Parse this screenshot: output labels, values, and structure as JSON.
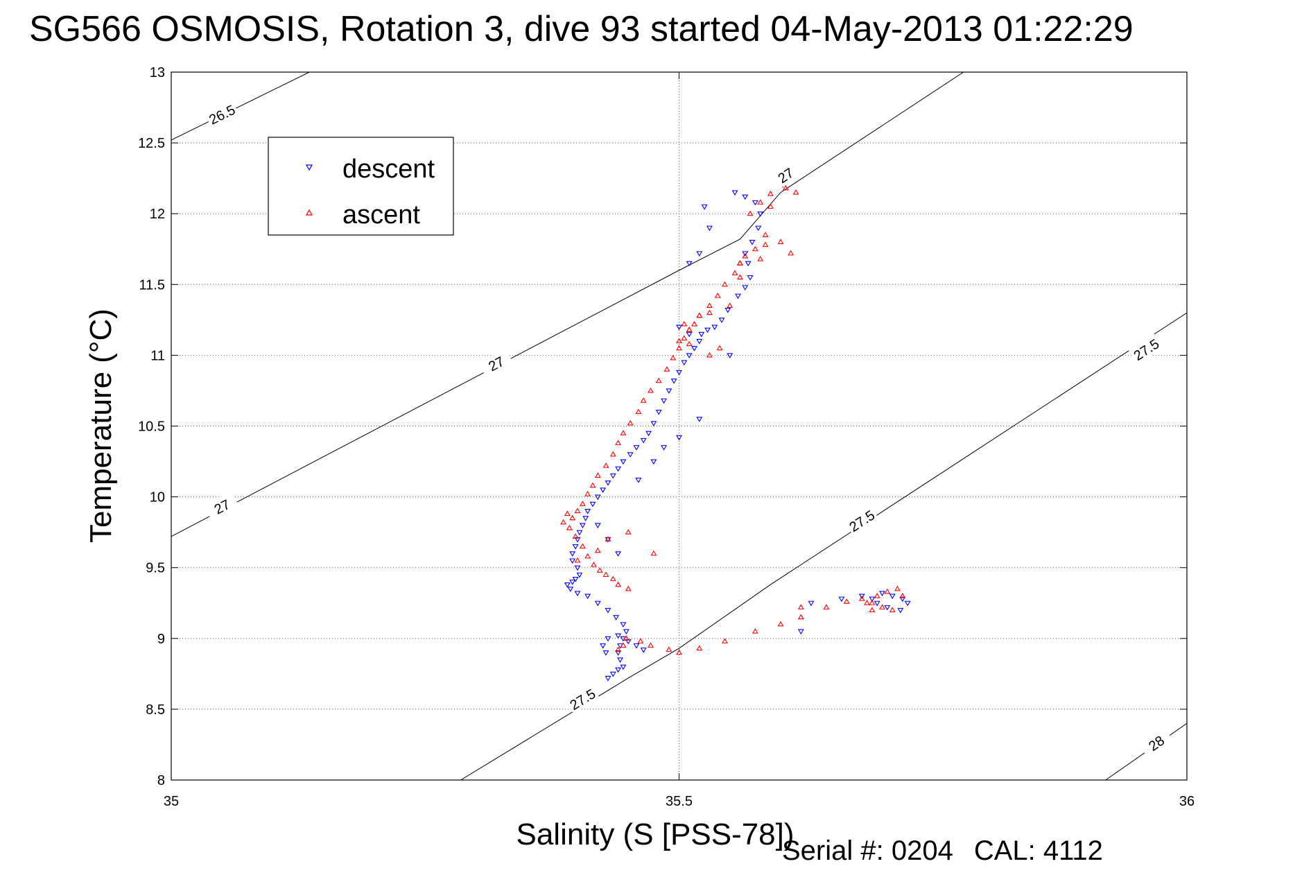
{
  "title": "SG566 OSMOSIS, Rotation 3, dive 93 started 04-May-2013 01:22:29",
  "footer": {
    "serial": "Serial #: 0204",
    "cal": "CAL: 4112"
  },
  "colors": {
    "descent": "#0000ff",
    "ascent": "#ff0000",
    "grid": "#555555",
    "axis": "#000000"
  },
  "chart_data": {
    "type": "scatter",
    "xlabel": "Salinity (S [PSS-78])",
    "ylabel": "Temperature (°C)",
    "xlim": [
      35,
      36
    ],
    "ylim": [
      8,
      13
    ],
    "xticks": [
      35,
      35.5,
      36
    ],
    "xtick_labels": [
      "35",
      "35.5",
      "36"
    ],
    "yticks": [
      8,
      8.5,
      9,
      9.5,
      10,
      10.5,
      11,
      11.5,
      12,
      12.5,
      13
    ],
    "ytick_labels": [
      "8",
      "8.5",
      "9",
      "9.5",
      "10",
      "10.5",
      "11",
      "11.5",
      "12",
      "12.5",
      "13"
    ],
    "grid": true,
    "legend": {
      "position": "upper-left",
      "entries": [
        "descent",
        "ascent"
      ]
    },
    "density_contours": [
      {
        "label": "26.5",
        "points": [
          [
            35.0,
            12.52
          ],
          [
            35.136,
            13.0
          ]
        ],
        "label_positions": [
          [
            35.05,
            12.7
          ]
        ]
      },
      {
        "label": "27",
        "points": [
          [
            35.0,
            9.72
          ],
          [
            35.5,
            11.6
          ],
          [
            35.56,
            11.82
          ],
          [
            35.6,
            12.15
          ],
          [
            35.78,
            13.0
          ]
        ],
        "label_positions": [
          [
            35.05,
            9.93
          ],
          [
            35.32,
            10.94
          ],
          [
            35.605,
            12.27
          ]
        ]
      },
      {
        "label": "27.5",
        "points": [
          [
            35.285,
            8.0
          ],
          [
            35.45,
            8.72
          ],
          [
            35.5,
            8.93
          ],
          [
            35.59,
            9.38
          ],
          [
            36.0,
            11.3
          ]
        ],
        "label_positions": [
          [
            35.405,
            8.57
          ],
          [
            35.68,
            9.83
          ],
          [
            35.96,
            11.04
          ]
        ]
      },
      {
        "label": "28",
        "points": [
          [
            35.92,
            8.0
          ],
          [
            36.0,
            8.4
          ]
        ],
        "label_positions": [
          [
            35.97,
            8.26
          ]
        ]
      }
    ],
    "series": [
      {
        "name": "descent",
        "marker": "triangle-down",
        "x": [
          35.555,
          35.565,
          35.575,
          35.58,
          35.578,
          35.572,
          35.565,
          35.568,
          35.57,
          35.565,
          35.558,
          35.548,
          35.542,
          35.535,
          35.528,
          35.522,
          35.52,
          35.515,
          35.51,
          35.505,
          35.5,
          35.495,
          35.49,
          35.485,
          35.48,
          35.475,
          35.47,
          35.465,
          35.458,
          35.452,
          35.445,
          35.44,
          35.435,
          35.43,
          35.425,
          35.42,
          35.415,
          35.41,
          35.408,
          35.405,
          35.402,
          35.4,
          35.398,
          35.395,
          35.395,
          35.4,
          35.402,
          35.398,
          35.395,
          35.39,
          35.393,
          35.4,
          35.41,
          35.42,
          35.43,
          35.438,
          35.445,
          35.448,
          35.445,
          35.442,
          35.44,
          35.442,
          35.445,
          35.44,
          35.435,
          35.43,
          35.428,
          35.425,
          35.43,
          35.44,
          35.45,
          35.458,
          35.465,
          35.44,
          35.43,
          35.42,
          35.46,
          35.475,
          35.485,
          35.5,
          35.52,
          35.55,
          35.62,
          35.63,
          35.66,
          35.68,
          35.7,
          35.71,
          35.72,
          35.725,
          35.718,
          35.705,
          35.695,
          35.69,
          35.51,
          35.52,
          35.53,
          35.525,
          35.5,
          35.51
        ],
        "y": [
          12.15,
          12.12,
          12.08,
          12.0,
          11.9,
          11.8,
          11.72,
          11.65,
          11.55,
          11.48,
          11.42,
          11.32,
          11.25,
          11.2,
          11.18,
          11.15,
          11.1,
          11.05,
          11.0,
          10.95,
          10.88,
          10.82,
          10.75,
          10.68,
          10.6,
          10.52,
          10.45,
          10.4,
          10.35,
          10.3,
          10.25,
          10.2,
          10.15,
          10.1,
          10.05,
          10.0,
          9.95,
          9.9,
          9.85,
          9.8,
          9.75,
          9.7,
          9.65,
          9.6,
          9.55,
          9.5,
          9.45,
          9.42,
          9.4,
          9.38,
          9.35,
          9.32,
          9.3,
          9.25,
          9.2,
          9.15,
          9.1,
          9.05,
          9.0,
          8.95,
          8.9,
          8.85,
          8.8,
          8.78,
          8.75,
          8.72,
          8.9,
          8.95,
          9.0,
          9.02,
          8.98,
          8.95,
          8.92,
          9.6,
          9.7,
          9.8,
          10.12,
          10.25,
          10.35,
          10.42,
          10.55,
          11.0,
          9.05,
          9.25,
          9.28,
          9.3,
          9.32,
          9.3,
          9.28,
          9.25,
          9.2,
          9.22,
          9.25,
          9.28,
          11.65,
          11.72,
          11.9,
          12.05,
          11.2,
          11.15
        ]
      },
      {
        "name": "ascent",
        "marker": "triangle-up",
        "x": [
          35.57,
          35.58,
          35.59,
          35.6,
          35.585,
          35.575,
          35.565,
          35.56,
          35.555,
          35.545,
          35.538,
          35.53,
          35.52,
          35.515,
          35.51,
          35.505,
          35.5,
          35.494,
          35.488,
          35.48,
          35.472,
          35.465,
          35.46,
          35.452,
          35.445,
          35.44,
          35.435,
          35.428,
          35.42,
          35.415,
          35.41,
          35.405,
          35.4,
          35.395,
          35.39,
          35.386,
          35.392,
          35.398,
          35.405,
          35.41,
          35.416,
          35.422,
          35.428,
          35.435,
          35.44,
          35.45,
          35.44,
          35.445,
          35.448,
          35.462,
          35.472,
          35.49,
          35.5,
          35.52,
          35.545,
          35.575,
          35.6,
          35.62,
          35.645,
          35.665,
          35.68,
          35.69,
          35.7,
          35.71,
          35.72,
          35.715,
          35.705,
          35.695,
          35.685,
          35.69,
          35.62,
          35.55,
          35.53,
          35.54,
          35.51,
          35.6,
          35.61,
          35.585,
          35.56,
          35.52,
          35.505,
          35.4,
          35.42,
          35.43,
          35.45,
          35.475,
          35.51,
          35.5,
          35.53,
          35.56,
          35.58,
          35.605,
          35.615,
          35.59
        ],
        "y": [
          12.0,
          12.08,
          12.14,
          12.2,
          11.78,
          11.75,
          11.7,
          11.65,
          11.58,
          11.5,
          11.42,
          11.35,
          11.28,
          11.22,
          11.18,
          11.12,
          11.05,
          10.98,
          10.9,
          10.82,
          10.75,
          10.68,
          10.6,
          10.52,
          10.45,
          10.38,
          10.3,
          10.22,
          10.15,
          10.08,
          10.02,
          9.95,
          9.9,
          9.85,
          9.88,
          9.82,
          9.78,
          9.72,
          9.65,
          9.58,
          9.52,
          9.48,
          9.45,
          9.42,
          9.38,
          9.35,
          8.92,
          8.95,
          9.0,
          8.98,
          8.95,
          8.92,
          8.9,
          8.93,
          8.98,
          9.05,
          9.1,
          9.15,
          9.22,
          9.26,
          9.28,
          9.25,
          9.22,
          9.2,
          9.3,
          9.35,
          9.33,
          9.3,
          9.25,
          9.2,
          9.22,
          11.35,
          11.3,
          11.05,
          11.08,
          11.8,
          11.72,
          11.85,
          11.65,
          11.28,
          11.22,
          9.55,
          9.62,
          9.7,
          9.75,
          9.6,
          11.18,
          11.1,
          11.0,
          11.55,
          11.68,
          12.18,
          12.15,
          12.05
        ]
      }
    ]
  }
}
